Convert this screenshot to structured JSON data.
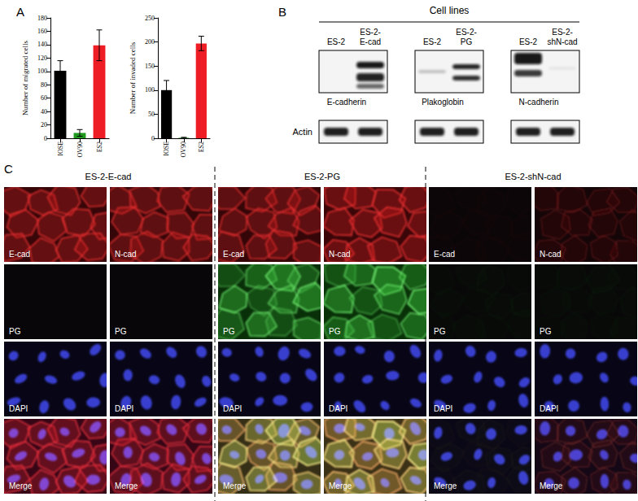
{
  "panel_labels": [
    "A",
    "B",
    "C"
  ],
  "chart_data": [
    {
      "type": "bar",
      "y_label": "Number of migrated cells",
      "categories": [
        "IOSE",
        "OV90",
        "ES2"
      ],
      "values": [
        101,
        8,
        139
      ],
      "errors": [
        15,
        5,
        23
      ],
      "colors": [
        "#000000",
        "#1f9a1f",
        "#ee1c25"
      ],
      "ylim": [
        0,
        180
      ],
      "yticks": [
        0,
        20,
        40,
        60,
        80,
        100,
        120,
        140,
        160,
        180
      ],
      "grid": false
    },
    {
      "type": "bar",
      "y_label": "Number of invaded cells",
      "categories": [
        "IOSE",
        "OV90",
        "ES2"
      ],
      "values": [
        100,
        1,
        197
      ],
      "errors": [
        20,
        1,
        15
      ],
      "colors": [
        "#000000",
        "#1f9a1f",
        "#ee1c25"
      ],
      "ylim": [
        0,
        250
      ],
      "yticks": [
        0,
        50,
        100,
        150,
        200,
        250
      ],
      "grid": false
    }
  ],
  "blots": {
    "title": "Cell lines",
    "groups": [
      {
        "lanes": [
          "ES-2",
          "ES-2-E-cad"
        ],
        "protein": "E-cadherin"
      },
      {
        "lanes": [
          "ES-2",
          "ES-2-PG"
        ],
        "protein": "Plakoglobin"
      },
      {
        "lanes": [
          "ES-2",
          "ES-2-shN-cad"
        ],
        "protein": "N-cadherin"
      }
    ],
    "control": "Actin"
  },
  "images": {
    "groups": [
      {
        "title": "ES-2-E-cad",
        "rows": [
          [
            "E-cad",
            "N-cad"
          ],
          [
            "PG",
            "PG"
          ],
          [
            "DAPI",
            "DAPI"
          ],
          [
            "Merge",
            "Merge"
          ]
        ]
      },
      {
        "title": "ES-2-PG",
        "rows": [
          [
            "E-cad",
            "N-cad"
          ],
          [
            "PG",
            "PG"
          ],
          [
            "DAPI",
            "DAPI"
          ],
          [
            "Merge",
            "Merge"
          ]
        ]
      },
      {
        "title": "ES-2-shN-cad",
        "rows": [
          [
            "E-cad",
            "N-cad"
          ],
          [
            "PG",
            "PG"
          ],
          [
            "DAPI",
            "DAPI"
          ],
          [
            "Merge",
            "Merge"
          ]
        ]
      }
    ]
  }
}
